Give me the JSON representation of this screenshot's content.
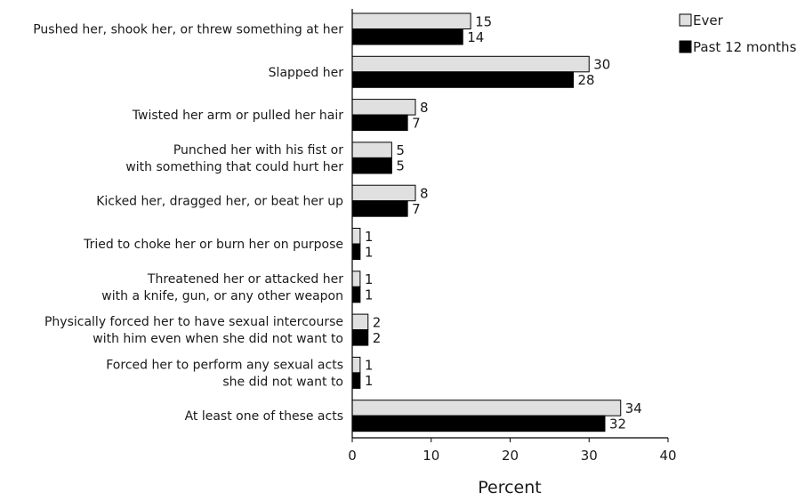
{
  "chart_data": {
    "type": "bar",
    "orientation": "horizontal",
    "categories": [
      [
        "Pushed her, shook her, or threw something at her"
      ],
      [
        "Slapped her"
      ],
      [
        "Twisted her arm or pulled her hair"
      ],
      [
        "Punched her with his fist or",
        "with something that could hurt her"
      ],
      [
        "Kicked her, dragged her, or beat her up"
      ],
      [
        "Tried to choke her or burn her on purpose"
      ],
      [
        "Threatened her or attacked her",
        "with a knife, gun, or any other weapon"
      ],
      [
        "Physically forced her to have sexual intercourse",
        "with him even when she did not want to"
      ],
      [
        "Forced her to perform any sexual acts",
        "she did not want to"
      ],
      [
        "At least one of these acts"
      ]
    ],
    "series": [
      {
        "name": "Ever",
        "color": "#e0e0e0",
        "values": [
          15,
          30,
          8,
          5,
          8,
          1,
          1,
          2,
          1,
          34
        ]
      },
      {
        "name": "Past 12 months",
        "color": "#000000",
        "values": [
          14,
          28,
          7,
          5,
          7,
          1,
          1,
          2,
          1,
          32
        ]
      }
    ],
    "xlabel": "Percent",
    "xlim": [
      0,
      40
    ],
    "xticks": [
      0,
      10,
      20,
      30,
      40
    ],
    "grid": false,
    "legend_position": "top-right"
  }
}
